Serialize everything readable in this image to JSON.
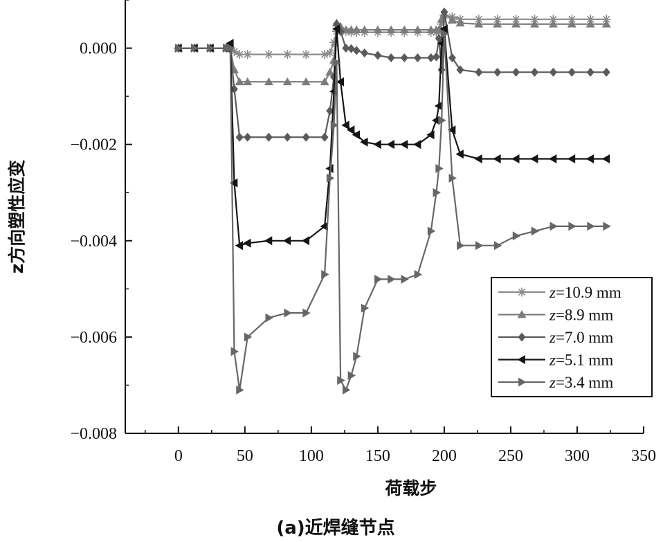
{
  "chart_data": {
    "type": "line",
    "title": "",
    "caption": "(a)近焊缝节点",
    "xlabel": "荷载步",
    "ylabel": "z方向塑性应变",
    "xlim": [
      -40,
      350
    ],
    "ylim": [
      -0.008,
      0.001
    ],
    "xticks": [
      0,
      50,
      100,
      150,
      200,
      250,
      300,
      350
    ],
    "xtick_labels": [
      "0",
      "50",
      "100",
      "150",
      "200",
      "250",
      "300",
      "350"
    ],
    "yticks": [
      0,
      -0.002,
      -0.004,
      -0.006,
      -0.008
    ],
    "ytick_labels": [
      "0.000",
      "−0.002",
      "−0.004",
      "−0.006",
      "−0.008"
    ],
    "grid": false,
    "legend_position": "bottom-right",
    "series": [
      {
        "name": "z=10.9 mm",
        "name_var": "z",
        "name_rest": "=10.9 mm",
        "color": "#8a8a8a",
        "marker": "star",
        "x": [
          0,
          12,
          24,
          36,
          39,
          42,
          46,
          52,
          68,
          82,
          96,
          110,
          114,
          117,
          119,
          122,
          126,
          130,
          134,
          140,
          150,
          160,
          170,
          180,
          190,
          194,
          196,
          198,
          200,
          206,
          212,
          226,
          240,
          254,
          268,
          282,
          296,
          310,
          322
        ],
        "y": [
          0,
          0,
          0,
          0,
          0,
          -7e-05,
          -0.00013,
          -0.00013,
          -0.00013,
          -0.00013,
          -0.00013,
          -0.00013,
          -0.0001,
          0.00012,
          0.00035,
          0.00035,
          0.00035,
          0.00033,
          0.00033,
          0.00033,
          0.00033,
          0.00033,
          0.00033,
          0.00033,
          0.00033,
          0.00033,
          0.00033,
          0.0005,
          0.00068,
          0.00065,
          0.0006,
          0.0006,
          0.0006,
          0.0006,
          0.0006,
          0.0006,
          0.0006,
          0.0006,
          0.0006
        ]
      },
      {
        "name": "z=8.9 mm",
        "name_var": "z",
        "name_rest": "=8.9 mm",
        "color": "#7c7c7c",
        "marker": "triangle-up",
        "x": [
          0,
          12,
          24,
          36,
          39,
          42,
          46,
          52,
          68,
          82,
          96,
          110,
          114,
          117,
          119,
          122,
          126,
          130,
          134,
          140,
          150,
          160,
          170,
          180,
          190,
          194,
          196,
          198,
          200,
          206,
          212,
          226,
          240,
          254,
          268,
          282,
          296,
          310,
          322
        ],
        "y": [
          0,
          0,
          0,
          0,
          0,
          -0.00045,
          -0.0007,
          -0.0007,
          -0.0007,
          -0.0007,
          -0.0007,
          -0.0007,
          -0.0005,
          -0.00025,
          0.00052,
          0.00045,
          0.00038,
          0.00038,
          0.00038,
          0.00038,
          0.00038,
          0.00038,
          0.00038,
          0.00038,
          0.00038,
          0.00038,
          0.00038,
          0.0006,
          0.00072,
          0.00058,
          0.00052,
          0.0005,
          0.0005,
          0.0005,
          0.0005,
          0.0005,
          0.0005,
          0.0005,
          0.0005
        ]
      },
      {
        "name": "z=7.0 mm",
        "name_var": "z",
        "name_rest": "=7.0 mm",
        "color": "#5a5a5a",
        "marker": "diamond",
        "x": [
          0,
          12,
          24,
          36,
          39,
          42,
          46,
          52,
          68,
          82,
          96,
          110,
          114,
          117,
          119,
          122,
          126,
          130,
          134,
          140,
          150,
          160,
          170,
          180,
          190,
          194,
          196,
          198,
          200,
          206,
          212,
          226,
          240,
          254,
          268,
          282,
          296,
          310,
          322
        ],
        "y": [
          0,
          0,
          0,
          0,
          0,
          -0.00085,
          -0.00185,
          -0.00185,
          -0.00185,
          -0.00185,
          -0.00185,
          -0.00185,
          -0.0013,
          -0.0006,
          0.0005,
          0.00035,
          0,
          -1e-05,
          -5e-05,
          -0.0001,
          -0.00015,
          -0.0002,
          -0.0002,
          -0.0002,
          -0.0002,
          -0.00018,
          0.0002,
          -0.00045,
          0.00075,
          -0.0002,
          -0.00045,
          -0.0005,
          -0.0005,
          -0.0005,
          -0.0005,
          -0.0005,
          -0.0005,
          -0.0005,
          -0.0005
        ]
      },
      {
        "name": "z=5.1 mm",
        "name_var": "z",
        "name_rest": "=5.1 mm",
        "color": "#151515",
        "marker": "triangle-left",
        "x": [
          0,
          12,
          24,
          36,
          39,
          42,
          46,
          52,
          68,
          82,
          96,
          110,
          114,
          117,
          119,
          122,
          126,
          130,
          134,
          140,
          150,
          160,
          170,
          180,
          190,
          194,
          196,
          198,
          200,
          206,
          212,
          226,
          240,
          254,
          268,
          282,
          296,
          310,
          322
        ],
        "y": [
          0,
          0,
          0,
          0,
          0.0001,
          -0.0028,
          -0.0041,
          -0.00405,
          -0.004,
          -0.004,
          -0.004,
          -0.0037,
          -0.0025,
          -0.0009,
          0.0004,
          -0.0007,
          -0.0016,
          -0.0017,
          -0.0018,
          -0.00195,
          -0.002,
          -0.002,
          -0.002,
          -0.002,
          -0.0018,
          -0.0015,
          -0.0012,
          0.0001,
          0.0004,
          -0.0017,
          -0.0022,
          -0.0023,
          -0.0023,
          -0.0023,
          -0.0023,
          -0.0023,
          -0.0023,
          -0.0023,
          -0.0023
        ]
      },
      {
        "name": "z=3.4 mm",
        "name_var": "z",
        "name_rest": "=3.4 mm",
        "color": "#666666",
        "marker": "triangle-right",
        "x": [
          0,
          12,
          24,
          36,
          39,
          42,
          46,
          52,
          68,
          82,
          96,
          110,
          114,
          117,
          119,
          122,
          126,
          130,
          134,
          140,
          150,
          160,
          170,
          180,
          190,
          194,
          196,
          198,
          200,
          206,
          212,
          226,
          240,
          254,
          268,
          282,
          296,
          310,
          322
        ],
        "y": [
          0,
          0,
          0,
          0,
          0,
          -0.0063,
          -0.0071,
          -0.006,
          -0.0056,
          -0.0055,
          -0.0055,
          -0.0047,
          -0.0027,
          -0.0016,
          -0.0003,
          -0.0069,
          -0.0071,
          -0.0068,
          -0.0064,
          -0.0054,
          -0.0048,
          -0.0048,
          -0.0048,
          -0.0047,
          -0.0038,
          -0.003,
          -0.0025,
          -0.0015,
          0.0003,
          -0.0027,
          -0.0041,
          -0.0041,
          -0.0041,
          -0.0039,
          -0.0038,
          -0.0037,
          -0.0037,
          -0.0037,
          -0.0037
        ]
      }
    ]
  }
}
